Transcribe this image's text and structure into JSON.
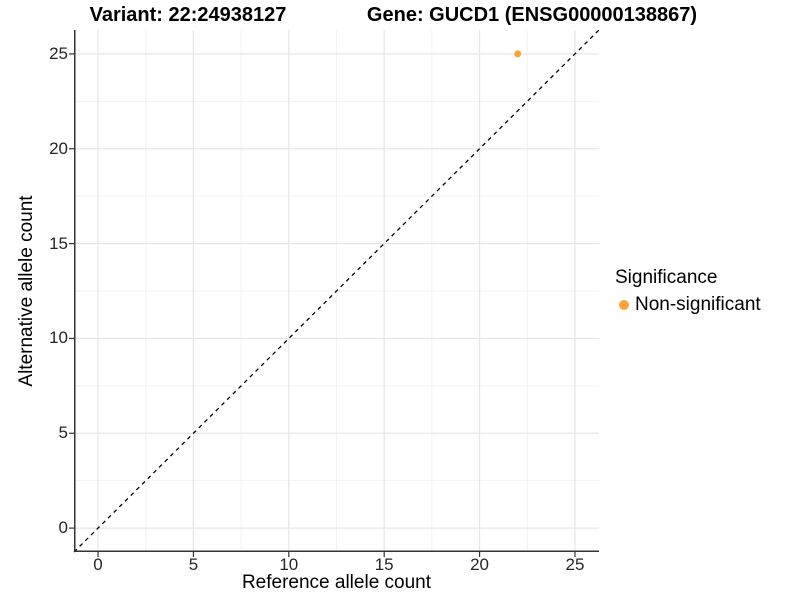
{
  "chart_data": {
    "type": "scatter",
    "titles": {
      "variant": "Variant: 22:24938127",
      "gene": "Gene: GUCD1 (ENSG00000138867)"
    },
    "xlabel": "Reference allele count",
    "ylabel": "Alternative allele count",
    "xlim": [
      -1.26,
      26.26
    ],
    "ylim": [
      -1.26,
      26.26
    ],
    "xticks": [
      0,
      5,
      10,
      15,
      20,
      25
    ],
    "yticks": [
      0,
      5,
      10,
      15,
      20,
      25
    ],
    "minor_ticks": [
      2.5,
      7.5,
      12.5,
      17.5,
      22.5
    ],
    "grid": "major+minor",
    "identity_line": {
      "style": "dashed",
      "color": "#000000",
      "from": [
        -1.26,
        -1.26
      ],
      "to": [
        26.26,
        26.26
      ]
    },
    "series": [
      {
        "name": "Non-significant",
        "color": "#FAA43A",
        "points": [
          [
            22,
            25
          ]
        ]
      }
    ],
    "legend": {
      "title": "Significance",
      "position": "right",
      "entries": [
        {
          "label": "Non-significant",
          "color": "#FAA43A"
        }
      ]
    }
  },
  "colors": {
    "background": "#FFFFFF",
    "grid_major": "#E6E6E6",
    "grid_minor": "#F2F2F2",
    "axis_line": "#333333",
    "tick": "#333333",
    "text": "#000000"
  }
}
